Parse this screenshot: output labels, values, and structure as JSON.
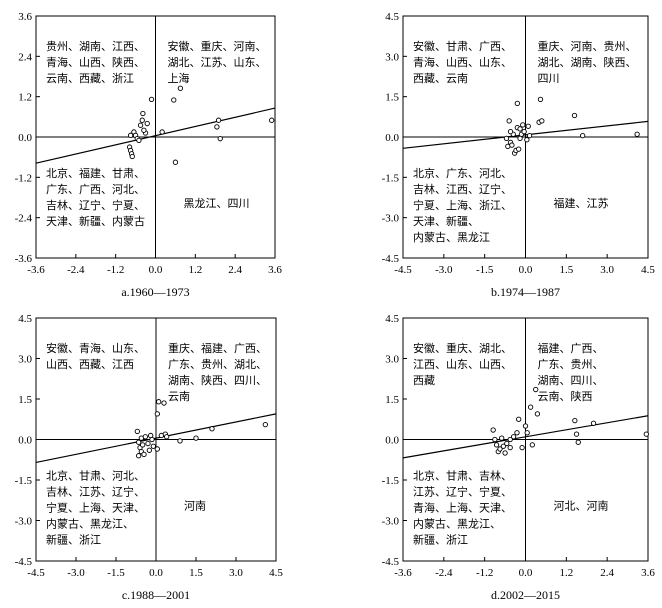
{
  "chart_data": [
    {
      "type": "scatter",
      "caption": "a.1960—1973",
      "xlim": [
        -3.6,
        3.6
      ],
      "ylim": [
        -3.6,
        3.6
      ],
      "xticks": [
        "-3.6",
        "-2.4",
        "-1.2",
        "0.0",
        "1.2",
        "2.4",
        "3.6"
      ],
      "yticks": [
        "3.6",
        "2.4",
        "1.2",
        "0.0",
        "-1.2",
        "-2.4",
        "-3.6"
      ],
      "tick_values": [
        -3.6,
        -2.4,
        -1.2,
        0,
        1.2,
        2.4,
        3.6
      ],
      "quadrants": {
        "top_left": [
          "贵州、湖南、江西、",
          "青海、山西、陕西、",
          "云南、西藏、浙江"
        ],
        "top_right": [
          "安徽、重庆、河南、",
          "湖北、江苏、山东、",
          "上海"
        ],
        "bottom_left": [
          "北京、福建、甘肃、",
          "广东、广西、河北、",
          "吉林、辽宁、宁夏、",
          "天津、新疆、内蒙古"
        ],
        "bottom_right": [
          "黑龙江、四川"
        ]
      },
      "regression": {
        "x": [
          -3.6,
          3.6
        ],
        "y": [
          -0.78,
          0.86
        ]
      },
      "points": [
        [
          -0.75,
          0.05
        ],
        [
          -0.78,
          -0.3
        ],
        [
          -0.75,
          -0.4
        ],
        [
          -0.72,
          -0.5
        ],
        [
          -0.7,
          -0.58
        ],
        [
          -0.65,
          0.15
        ],
        [
          -0.6,
          0.05
        ],
        [
          -0.55,
          -0.05
        ],
        [
          -0.45,
          0.35
        ],
        [
          -0.4,
          0.5
        ],
        [
          -0.38,
          0.7
        ],
        [
          -0.3,
          0.12
        ],
        [
          -0.25,
          0.4
        ],
        [
          -0.12,
          1.12
        ],
        [
          0.2,
          0.15
        ],
        [
          0.55,
          1.1
        ],
        [
          0.75,
          1.45
        ],
        [
          0.6,
          -0.75
        ],
        [
          1.9,
          0.5
        ],
        [
          1.95,
          -0.05
        ],
        [
          1.85,
          0.3
        ],
        [
          3.5,
          0.5
        ],
        [
          -0.35,
          0.2
        ],
        [
          -0.5,
          -0.1
        ]
      ]
    },
    {
      "type": "scatter",
      "caption": "b.1974—1987",
      "xlim": [
        -4.5,
        4.5
      ],
      "ylim": [
        -4.5,
        4.5
      ],
      "xticks": [
        "-4.5",
        "-3.0",
        "-1.5",
        "0.0",
        "1.5",
        "3.0",
        "4.5"
      ],
      "yticks": [
        "4.5",
        "3.0",
        "1.5",
        "0.0",
        "-1.5",
        "-3.0",
        "-4.5"
      ],
      "tick_values": [
        -4.5,
        -3.0,
        -1.5,
        0,
        1.5,
        3.0,
        4.5
      ],
      "quadrants": {
        "top_left": [
          "安徽、甘肃、广西、",
          "青海、山西、山东、",
          "西藏、云南"
        ],
        "top_right": [
          "重庆、河南、贵州、",
          "湖北、湖南、陕西、",
          "四川"
        ],
        "bottom_left": [
          "北京、广东、河北、",
          "吉林、江西、辽宁、",
          "宁夏、上海、浙江、",
          "天津、新疆、",
          "内蒙古、黑龙江"
        ],
        "bottom_right": [
          "福建、江苏"
        ]
      },
      "regression": {
        "x": [
          -4.5,
          4.5
        ],
        "y": [
          -0.42,
          0.58
        ]
      },
      "points": [
        [
          -0.7,
          -0.05
        ],
        [
          -0.65,
          -0.35
        ],
        [
          -0.6,
          0.6
        ],
        [
          -0.55,
          -0.2
        ],
        [
          -0.5,
          -0.3
        ],
        [
          -0.45,
          0.1
        ],
        [
          -0.4,
          -0.6
        ],
        [
          -0.35,
          -0.5
        ],
        [
          -0.3,
          0.35
        ],
        [
          -0.3,
          1.25
        ],
        [
          -0.25,
          -0.45
        ],
        [
          -0.2,
          0.3
        ],
        [
          -0.15,
          0.1
        ],
        [
          -0.1,
          0.45
        ],
        [
          -0.05,
          0.2
        ],
        [
          0.05,
          -0.1
        ],
        [
          0.1,
          0.4
        ],
        [
          0.15,
          0.05
        ],
        [
          0.5,
          0.55
        ],
        [
          0.6,
          0.6
        ],
        [
          0.55,
          1.4
        ],
        [
          1.8,
          0.8
        ],
        [
          2.1,
          0.05
        ],
        [
          4.1,
          0.1
        ],
        [
          -0.2,
          -0.05
        ],
        [
          -0.55,
          0.2
        ]
      ]
    },
    {
      "type": "scatter",
      "caption": "c.1988—2001",
      "xlim": [
        -4.5,
        4.5
      ],
      "ylim": [
        -4.5,
        4.5
      ],
      "xticks": [
        "-4.5",
        "-3.0",
        "-1.5",
        "0.0",
        "1.5",
        "3.0",
        "4.5"
      ],
      "yticks": [
        "4.5",
        "3.0",
        "1.5",
        "0.0",
        "-1.5",
        "-3.0",
        "-4.5"
      ],
      "tick_values": [
        -4.5,
        -3.0,
        -1.5,
        0,
        1.5,
        3.0,
        4.5
      ],
      "quadrants": {
        "top_left": [
          "安徽、青海、山东、",
          "山西、西藏、江西"
        ],
        "top_right": [
          "重庆、福建、广西、",
          "广东、贵州、湖北、",
          "湖南、陕西、四川、",
          "云南"
        ],
        "bottom_left": [
          "北京、甘肃、河北、",
          "吉林、江苏、辽宁、",
          "宁夏、上海、天津、",
          "内蒙古、黑龙江、",
          "新疆、浙江"
        ],
        "bottom_right": [
          "河南"
        ]
      },
      "regression": {
        "x": [
          -4.5,
          4.5
        ],
        "y": [
          -0.85,
          0.95
        ]
      },
      "points": [
        [
          -0.7,
          0.3
        ],
        [
          -0.65,
          -0.1
        ],
        [
          -0.6,
          -0.3
        ],
        [
          -0.55,
          -0.45
        ],
        [
          -0.55,
          0.05
        ],
        [
          -0.5,
          -0.2
        ],
        [
          -0.45,
          -0.55
        ],
        [
          -0.4,
          0.1
        ],
        [
          -0.3,
          -0.15
        ],
        [
          -0.25,
          -0.4
        ],
        [
          -0.2,
          0.15
        ],
        [
          -0.15,
          0.0
        ],
        [
          -0.1,
          -0.25
        ],
        [
          0.05,
          -0.35
        ],
        [
          0.05,
          0.95
        ],
        [
          0.1,
          1.4
        ],
        [
          0.2,
          0.15
        ],
        [
          0.3,
          1.35
        ],
        [
          0.35,
          0.2
        ],
        [
          0.4,
          0.1
        ],
        [
          0.9,
          -0.05
        ],
        [
          1.5,
          0.05
        ],
        [
          2.1,
          0.4
        ],
        [
          4.1,
          0.55
        ],
        [
          -0.65,
          -0.6
        ]
      ]
    },
    {
      "type": "scatter",
      "caption": "d.2002—2015",
      "xlim": [
        -3.6,
        3.6
      ],
      "ylim": [
        -4.5,
        4.5
      ],
      "xticks": [
        "-3.6",
        "-2.4",
        "-1.2",
        "0.0",
        "1.2",
        "2.4",
        "3.6"
      ],
      "yticks": [
        "4.5",
        "3.0",
        "1.5",
        "0.0",
        "-1.5",
        "-3.0",
        "-4.5"
      ],
      "tick_values_x": [
        -3.6,
        -2.4,
        -1.2,
        0,
        1.2,
        2.4,
        3.6
      ],
      "tick_values_y": [
        -4.5,
        -3.0,
        -1.5,
        0,
        1.5,
        3.0,
        4.5
      ],
      "quadrants": {
        "top_left": [
          "安徽、重庆、湖北、",
          "江西、山东、山西、",
          "西藏"
        ],
        "top_right": [
          "福建、广西、",
          "广东、贵州、",
          "湖南、四川、",
          "云南、陕西"
        ],
        "bottom_left": [
          "北京、甘肃、吉林、",
          "江苏、辽宁、宁夏、",
          "青海、上海、天津、",
          "内蒙古、黑龙江、",
          "新疆、浙江"
        ],
        "bottom_right": [
          "河北、河南"
        ]
      },
      "regression": {
        "x": [
          -3.6,
          3.6
        ],
        "y": [
          -0.68,
          0.88
        ]
      },
      "points": [
        [
          -0.95,
          0.35
        ],
        [
          -0.9,
          0.0
        ],
        [
          -0.85,
          -0.2
        ],
        [
          -0.8,
          -0.45
        ],
        [
          -0.75,
          -0.35
        ],
        [
          -0.7,
          0.05
        ],
        [
          -0.65,
          -0.25
        ],
        [
          -0.6,
          -0.5
        ],
        [
          -0.55,
          -0.15
        ],
        [
          -0.45,
          -0.3
        ],
        [
          -0.35,
          0.1
        ],
        [
          -0.25,
          0.25
        ],
        [
          -0.2,
          0.75
        ],
        [
          -0.1,
          -0.3
        ],
        [
          0.0,
          0.5
        ],
        [
          0.05,
          0.25
        ],
        [
          0.15,
          1.2
        ],
        [
          0.2,
          -0.2
        ],
        [
          0.3,
          1.85
        ],
        [
          0.35,
          0.95
        ],
        [
          1.45,
          0.7
        ],
        [
          1.5,
          0.2
        ],
        [
          1.55,
          -0.1
        ],
        [
          2.0,
          0.6
        ],
        [
          3.55,
          0.2
        ],
        [
          -0.45,
          0.0
        ]
      ]
    }
  ]
}
